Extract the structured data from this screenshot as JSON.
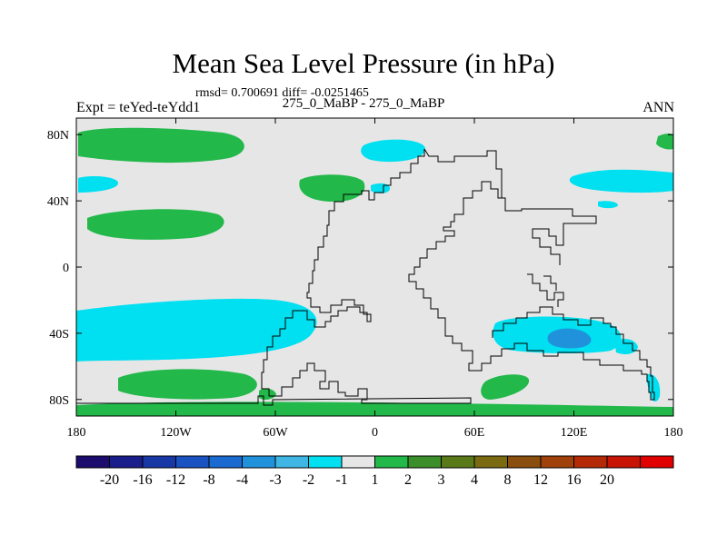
{
  "title": "Mean Sea Level Pressure (in hPa)",
  "stats": "rmsd= 0.700691 diff= -0.0251465",
  "expt": "Expt = teYed-teYdd1",
  "subtitle": "275_0_MaBP - 275_0_MaBP",
  "season": "ANN",
  "map": {
    "lon_range": [
      -180,
      180
    ],
    "lat_range": [
      -90,
      90
    ],
    "x_ticks": [
      {
        "lon": -180,
        "label": "180"
      },
      {
        "lon": -120,
        "label": "120W"
      },
      {
        "lon": -60,
        "label": "60W"
      },
      {
        "lon": 0,
        "label": "0"
      },
      {
        "lon": 60,
        "label": "60E"
      },
      {
        "lon": 120,
        "label": "120E"
      },
      {
        "lon": 180,
        "label": "180"
      }
    ],
    "y_ticks": [
      {
        "lat": 80,
        "label": "80N"
      },
      {
        "lat": 40,
        "label": "40N"
      },
      {
        "lat": 0,
        "label": "0"
      },
      {
        "lat": -40,
        "label": "40S"
      },
      {
        "lat": -80,
        "label": "80S"
      }
    ],
    "background_color": "#e6e6e6",
    "coast_color": "#000000"
  },
  "colorbar": {
    "colors": [
      "#1c0c6e",
      "#1a1e8a",
      "#1838a6",
      "#1a52c2",
      "#1b6ad0",
      "#2092dc",
      "#3fb6e4",
      "#00e0f0",
      "#e6e6e6",
      "#22b84a",
      "#3c8e2a",
      "#5a7a1a",
      "#7a6a12",
      "#8a4e0e",
      "#a0400a",
      "#b42a06",
      "#c81404",
      "#e00000"
    ],
    "labels": [
      "-20",
      "-16",
      "-12",
      "-8",
      "-4",
      "-3",
      "-2",
      "-1",
      "1",
      "2",
      "3",
      "4",
      "8",
      "12",
      "16",
      "20"
    ]
  }
}
